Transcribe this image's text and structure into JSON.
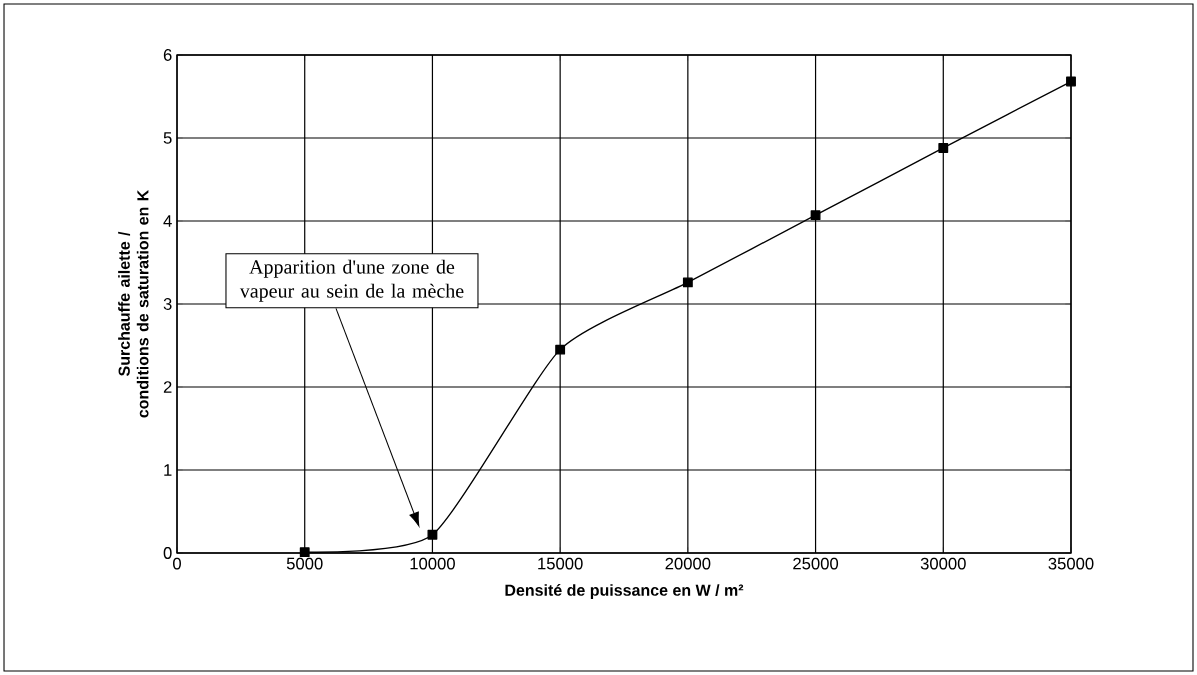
{
  "chart_data": {
    "type": "line",
    "xlabel": "Densité de puissance en W / m²",
    "ylabel": "Surchauffe ailette / conditions de saturation en K",
    "x": [
      5000,
      10000,
      15000,
      20000,
      25000,
      30000,
      35000
    ],
    "series": [
      {
        "color": "#000000",
        "values": [
          0.01,
          0.22,
          2.45,
          3.26,
          4.07,
          4.88,
          5.68
        ]
      }
    ],
    "xlim": [
      0,
      35000
    ],
    "ylim": [
      0,
      6
    ],
    "xticks": [
      0,
      5000,
      10000,
      15000,
      20000,
      25000,
      30000,
      35000
    ],
    "yticks": [
      0,
      1,
      2,
      3,
      4,
      5,
      6
    ],
    "grid": true,
    "marker": "square",
    "line_style": "solid",
    "annotations": [
      "Apparition d'une zone de vapeur au sein de la mèche"
    ]
  }
}
